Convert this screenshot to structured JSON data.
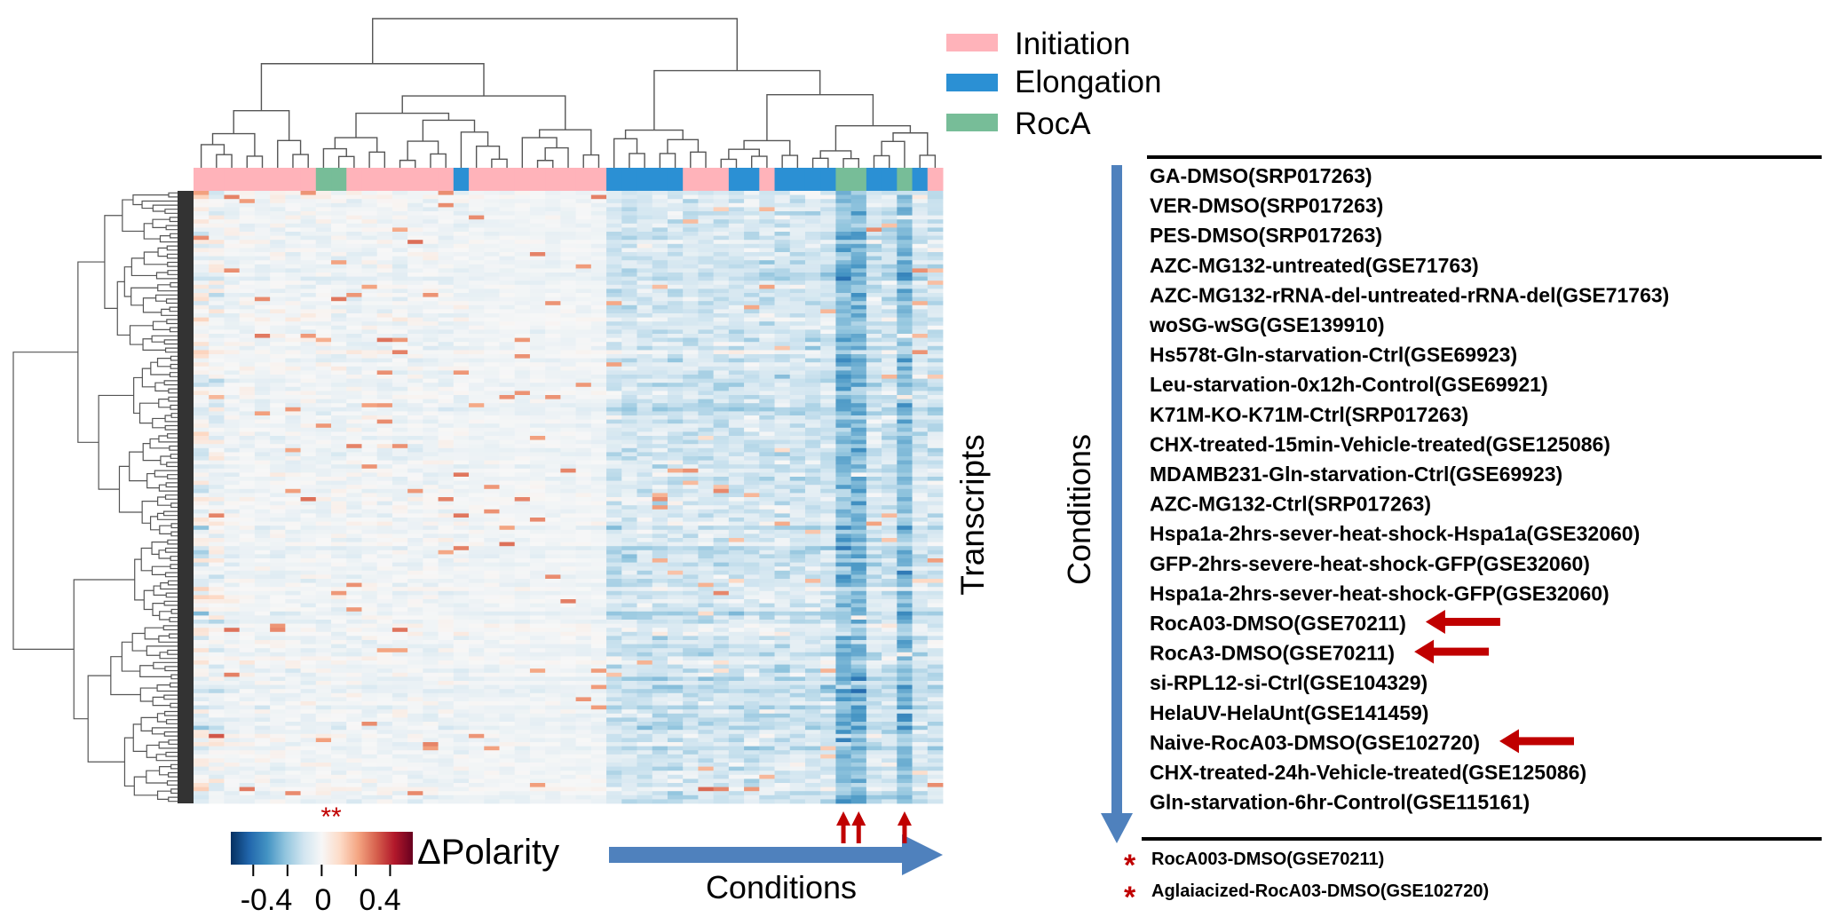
{
  "chart_data": {
    "type": "heatmap",
    "row_label": "Transcripts",
    "column_label": "Conditions",
    "colorbar": {
      "label": "ΔPolarity",
      "range": [
        -0.5,
        0.5
      ],
      "tick_labels": [
        "-0.4",
        "0",
        "0.4"
      ],
      "colormap": [
        "#053061",
        "#2166ac",
        "#4393c3",
        "#92c5de",
        "#d1e5f0",
        "#f7f7f7",
        "#fddbc7",
        "#f4a582",
        "#d6604d",
        "#b2182b",
        "#67001f"
      ]
    },
    "legend": [
      {
        "name": "Initiation",
        "color": "#ffb3ba"
      },
      {
        "name": "Elongation",
        "color": "#2b90d4"
      },
      {
        "name": "RocA",
        "color": "#77bd98"
      }
    ],
    "column_groups": [
      "Initiation",
      "Initiation",
      "Initiation",
      "Initiation",
      "Initiation",
      "Initiation",
      "Initiation",
      "Initiation",
      "RocA",
      "RocA",
      "Initiation",
      "Initiation",
      "Initiation",
      "Initiation",
      "Initiation",
      "Initiation",
      "Initiation",
      "Elongation",
      "Initiation",
      "Initiation",
      "Initiation",
      "Initiation",
      "Initiation",
      "Initiation",
      "Initiation",
      "Initiation",
      "Initiation",
      "Elongation",
      "Elongation",
      "Elongation",
      "Elongation",
      "Elongation",
      "Initiation",
      "Initiation",
      "Initiation",
      "Elongation",
      "Elongation",
      "Initiation",
      "Elongation",
      "Elongation",
      "Elongation",
      "Elongation",
      "RocA",
      "RocA",
      "Elongation",
      "Elongation",
      "RocA",
      "Elongation",
      "Initiation"
    ],
    "highlighted_columns": [
      42,
      43,
      46
    ],
    "significance_mark": "**",
    "grid": false,
    "legend_placement": "top-right"
  },
  "conditions_panel": {
    "axis_label": "Conditions",
    "items": [
      "GA-DMSO(SRP017263)",
      "VER-DMSO(SRP017263)",
      "PES-DMSO(SRP017263)",
      "AZC-MG132-untreated(GSE71763)",
      "AZC-MG132-rRNA-del-untreated-rRNA-del(GSE71763)",
      "woSG-wSG(GSE139910)",
      "Hs578t-Gln-starvation-Ctrl(GSE69923)",
      "Leu-starvation-0x12h-Control(GSE69921)",
      "K71M-KO-K71M-Ctrl(SRP017263)",
      "CHX-treated-15min-Vehicle-treated(GSE125086)",
      "MDAMB231-Gln-starvation-Ctrl(GSE69923)",
      "AZC-MG132-Ctrl(SRP017263)",
      "Hspa1a-2hrs-sever-heat-shock-Hspa1a(GSE32060)",
      "GFP-2hrs-severe-heat-shock-GFP(GSE32060)",
      "Hspa1a-2hrs-sever-heat-shock-GFP(GSE32060)",
      "RocA03-DMSO(GSE70211)",
      "RocA3-DMSO(GSE70211)",
      "si-RPL12-si-Ctrl(GSE104329)",
      "HelaUV-HelaUnt(GSE141459)",
      "Naive-RocA03-DMSO(GSE102720)",
      "CHX-treated-24h-Vehicle-treated(GSE125086)",
      "Gln-starvation-6hr-Control(GSE115161)"
    ],
    "arrowed_items": [
      15,
      16,
      19
    ],
    "starred_items": [
      "RocA003-DMSO(GSE70211)",
      "Aglaiacized-RocA03-DMSO(GSE102720)"
    ],
    "star_symbol": "*"
  }
}
